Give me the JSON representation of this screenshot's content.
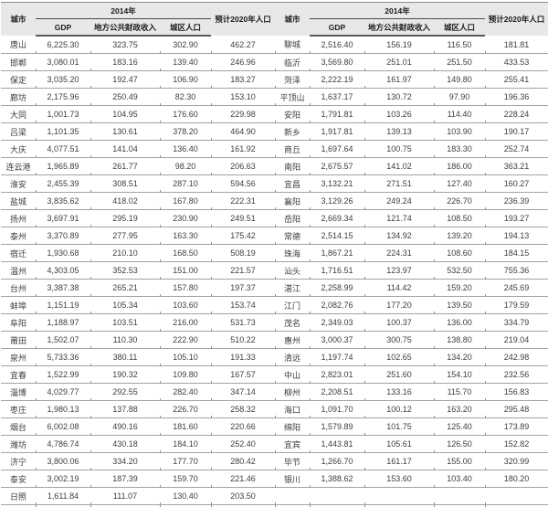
{
  "table": {
    "header": {
      "city": "城市",
      "year_group": "2014年",
      "sub": [
        "GDP",
        "地方公共财政收入",
        "城区人口"
      ],
      "pop2020": "预计2020年人口"
    },
    "left_rows": [
      [
        "唐山",
        "6,225.30",
        "323.75",
        "302.90",
        "462.27"
      ],
      [
        "邯郸",
        "3,080.01",
        "183.16",
        "139.40",
        "246.96"
      ],
      [
        "保定",
        "3,035.20",
        "192.47",
        "106.90",
        "183.27"
      ],
      [
        "廊坊",
        "2,175.96",
        "250.49",
        "82.30",
        "153.10"
      ],
      [
        "大同",
        "1,001.73",
        "104.95",
        "176.60",
        "229.98"
      ],
      [
        "吕梁",
        "1,101.35",
        "130.61",
        "378.20",
        "464.90"
      ],
      [
        "大庆",
        "4,077.51",
        "141.04",
        "136.40",
        "161.92"
      ],
      [
        "连云港",
        "1,965.89",
        "261.77",
        "98.20",
        "206.63"
      ],
      [
        "淮安",
        "2,455.39",
        "308.51",
        "287.10",
        "594.56"
      ],
      [
        "盐城",
        "3,835.62",
        "418.02",
        "167.80",
        "222.31"
      ],
      [
        "扬州",
        "3,697.91",
        "295.19",
        "230.90",
        "249.51"
      ],
      [
        "泰州",
        "3,370.89",
        "277.95",
        "163.30",
        "175.42"
      ],
      [
        "宿迁",
        "1,930.68",
        "210.10",
        "168.50",
        "508.19"
      ],
      [
        "温州",
        "4,303.05",
        "352.53",
        "151.00",
        "221.57"
      ],
      [
        "台州",
        "3,387.38",
        "265.21",
        "157.80",
        "197.37"
      ],
      [
        "蚌埠",
        "1,151.19",
        "105.34",
        "103.60",
        "153.74"
      ],
      [
        "阜阳",
        "1,188.97",
        "103.51",
        "216.00",
        "531.73"
      ],
      [
        "莆田",
        "1,502.07",
        "110.30",
        "222.90",
        "510.22"
      ],
      [
        "泉州",
        "5,733.36",
        "380.11",
        "105.10",
        "191.33"
      ],
      [
        "宜春",
        "1,522.99",
        "190.32",
        "109.80",
        "167.57"
      ],
      [
        "淄博",
        "4,029.77",
        "292.55",
        "282.40",
        "347.14"
      ],
      [
        "枣庄",
        "1,980.13",
        "137.88",
        "226.70",
        "258.32"
      ],
      [
        "烟台",
        "6,002.08",
        "490.16",
        "181.60",
        "220.66"
      ],
      [
        "潍坊",
        "4,786.74",
        "430.18",
        "184.10",
        "252.40"
      ],
      [
        "济宁",
        "3,800.06",
        "334.20",
        "177.70",
        "280.42"
      ],
      [
        "泰安",
        "3,002.19",
        "187.39",
        "159.70",
        "221.46"
      ],
      [
        "日照",
        "1,611.84",
        "111.07",
        "130.40",
        "203.50"
      ]
    ],
    "right_rows": [
      [
        "聊城",
        "2,516.40",
        "156.19",
        "116.50",
        "181.81"
      ],
      [
        "临沂",
        "3,569.80",
        "251.01",
        "251.50",
        "433.53"
      ],
      [
        "菏泽",
        "2,222.19",
        "161.97",
        "149.80",
        "255.41"
      ],
      [
        "平顶山",
        "1,637.17",
        "130.72",
        "97.90",
        "196.36"
      ],
      [
        "安阳",
        "1,791.81",
        "103.26",
        "114.40",
        "228.24"
      ],
      [
        "新乡",
        "1,917.81",
        "139.13",
        "103.90",
        "190.17"
      ],
      [
        "商丘",
        "1,697.64",
        "100.75",
        "183.30",
        "252.74"
      ],
      [
        "南阳",
        "2,675.57",
        "141.02",
        "186.00",
        "363.21"
      ],
      [
        "宜昌",
        "3,132.21",
        "271.51",
        "127.40",
        "160.27"
      ],
      [
        "襄阳",
        "3,129.26",
        "249.24",
        "226.70",
        "236.39"
      ],
      [
        "岳阳",
        "2,669.34",
        "121.74",
        "108.50",
        "193.27"
      ],
      [
        "常德",
        "2,514.15",
        "134.92",
        "139.20",
        "194.13"
      ],
      [
        "珠海",
        "1,867.21",
        "224.31",
        "108.60",
        "184.15"
      ],
      [
        "汕头",
        "1,716.51",
        "123.97",
        "532.50",
        "755.36"
      ],
      [
        "湛江",
        "2,258.99",
        "114.42",
        "159.20",
        "245.69"
      ],
      [
        "江门",
        "2,082.76",
        "177.20",
        "139.50",
        "179.59"
      ],
      [
        "茂名",
        "2,349.03",
        "100.37",
        "136.00",
        "334.79"
      ],
      [
        "惠州",
        "3,000.37",
        "300.75",
        "138.80",
        "219.04"
      ],
      [
        "清远",
        "1,197.74",
        "102.65",
        "134.20",
        "242.98"
      ],
      [
        "中山",
        "2,823.01",
        "251.60",
        "154.10",
        "232.56"
      ],
      [
        "柳州",
        "2,208.51",
        "133.16",
        "115.70",
        "156.83"
      ],
      [
        "海口",
        "1,091.70",
        "100.12",
        "163.20",
        "295.48"
      ],
      [
        "绵阳",
        "1,579.89",
        "101.75",
        "125.40",
        "173.89"
      ],
      [
        "宜宾",
        "1,443.81",
        "105.61",
        "126.50",
        "152.82"
      ],
      [
        "毕节",
        "1,266.70",
        "161.17",
        "155.00",
        "320.99"
      ],
      [
        "银川",
        "1,388.62",
        "153.60",
        "103.40",
        "180.20"
      ]
    ]
  },
  "colors": {
    "header_bg": "#e8e8e8",
    "row_border": "#a3a3a3",
    "header_rule": "#4d4d4d",
    "text": "#3d3d3d"
  }
}
